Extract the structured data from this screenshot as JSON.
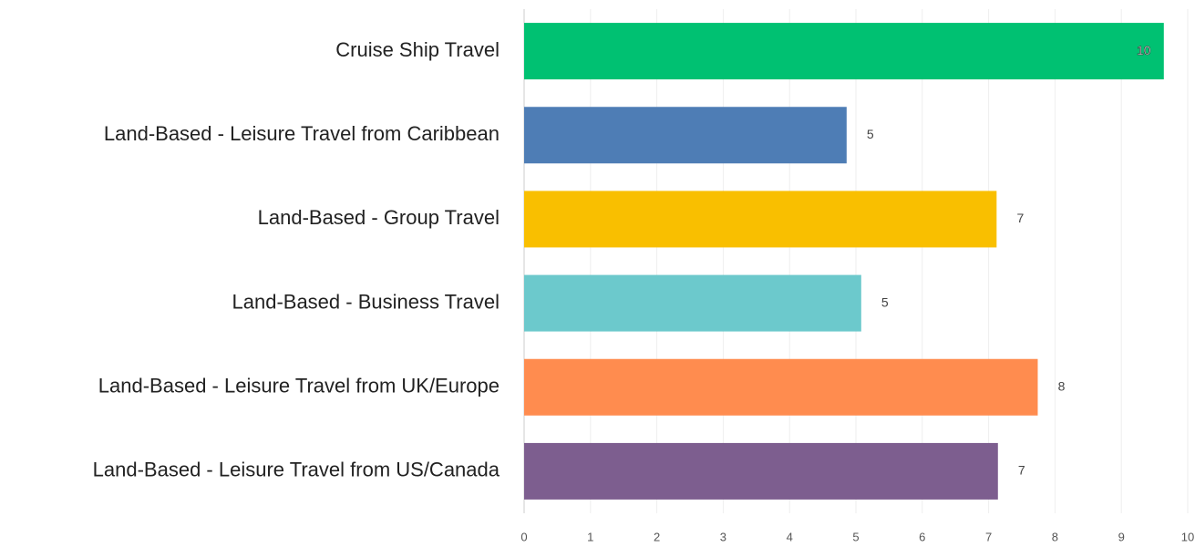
{
  "chart_data": {
    "type": "bar",
    "orientation": "horizontal",
    "categories": [
      "Cruise Ship Travel",
      "Land-Based - Leisure Travel from Caribbean",
      "Land-Based - Group Travel",
      "Land-Based - Business Travel",
      "Land-Based - Leisure Travel from UK/Europe",
      "Land-Based - Leisure Travel from US/Canada"
    ],
    "values": [
      9.64,
      4.86,
      7.12,
      5.08,
      7.74,
      7.14
    ],
    "value_labels": [
      "10",
      "5",
      "7",
      "5",
      "8",
      "7"
    ],
    "colors": [
      "#00c172",
      "#4e7db5",
      "#f9bf00",
      "#6cc9cc",
      "#ff8c4f",
      "#7d5e8f"
    ],
    "xlim": [
      0,
      10
    ],
    "xticks": [
      0,
      1,
      2,
      3,
      4,
      5,
      6,
      7,
      8,
      9,
      10
    ],
    "grid": true
  }
}
